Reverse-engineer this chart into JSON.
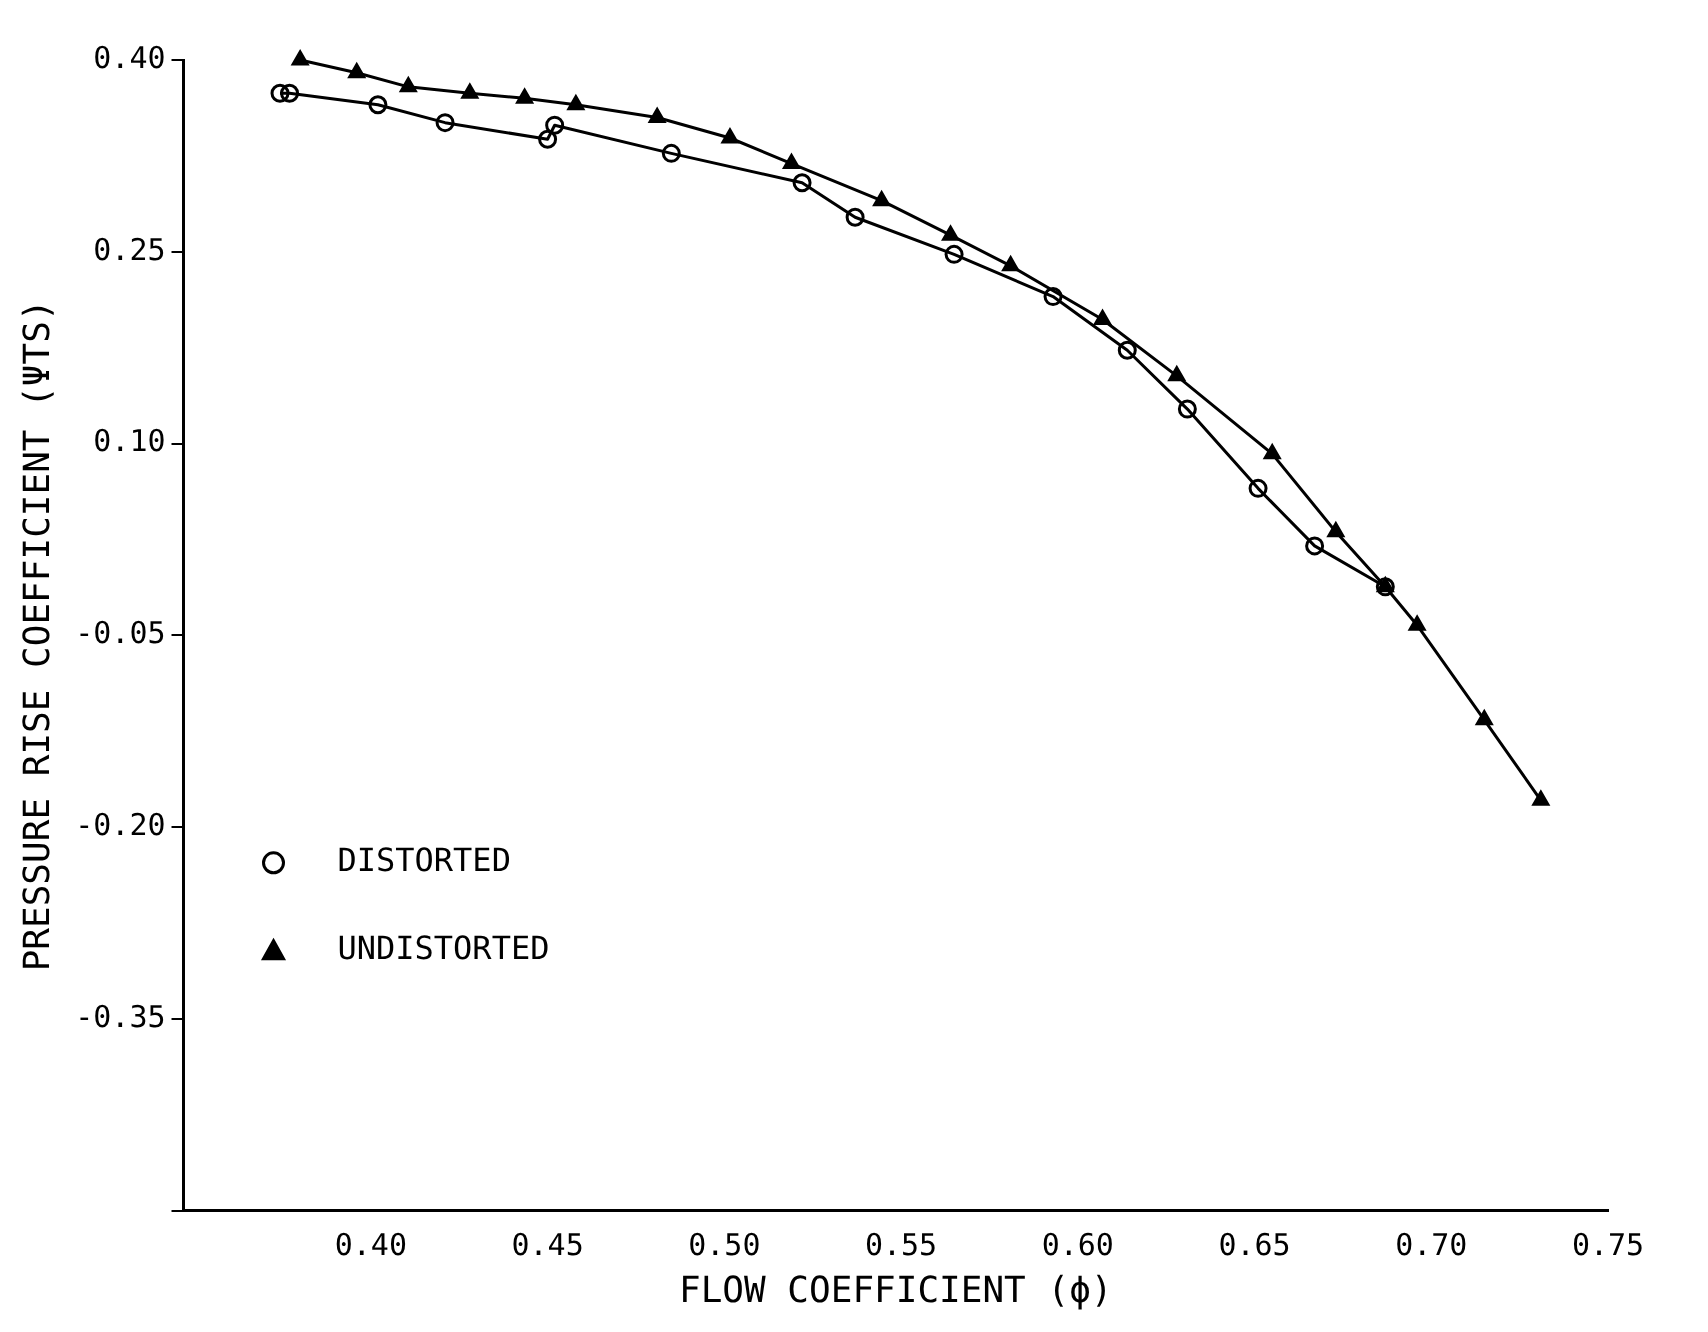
{
  "chart_data": {
    "type": "line",
    "xlabel": "FLOW COEFFICIENT (ϕ)",
    "ylabel": "PRESSURE RISE COEFFICIENT (ΨTS)",
    "xlim": [
      0.347,
      0.75
    ],
    "ylim": [
      -0.5,
      0.4
    ],
    "xticks": [
      {
        "value": 0.4,
        "label": "0.40"
      },
      {
        "value": 0.45,
        "label": "0.45"
      },
      {
        "value": 0.5,
        "label": "0.50"
      },
      {
        "value": 0.55,
        "label": "0.55"
      },
      {
        "value": 0.6,
        "label": "0.60"
      },
      {
        "value": 0.65,
        "label": "0.65"
      },
      {
        "value": 0.7,
        "label": "0.70"
      },
      {
        "value": 0.75,
        "label": "0.75"
      }
    ],
    "yticks": [
      {
        "value": 0.4,
        "label": "0.40"
      },
      {
        "value": 0.25,
        "label": "0.25"
      },
      {
        "value": 0.1,
        "label": "0.10"
      },
      {
        "value": -0.05,
        "label": "-0.05"
      },
      {
        "value": -0.2,
        "label": "-0.20"
      },
      {
        "value": -0.35,
        "label": "-0.35"
      },
      {
        "value": -0.5,
        "label": null
      }
    ],
    "grid": false,
    "legend": "bottom left",
    "line_style": "solid",
    "series": [
      {
        "name": "DISTORTED",
        "color": "#000000",
        "marker": "circle",
        "x": [
          0.3743,
          0.377,
          0.402,
          0.421,
          0.45,
          0.452,
          0.485,
          0.522,
          0.537,
          0.565,
          0.593,
          0.614,
          0.631,
          0.651,
          0.667,
          0.687
        ],
        "values": [
          0.374,
          0.374,
          0.365,
          0.351,
          0.338,
          0.349,
          0.327,
          0.304,
          0.277,
          0.248,
          0.215,
          0.173,
          0.127,
          0.065,
          0.02,
          -0.012
        ]
      },
      {
        "name": "UNDISTORTED",
        "color": "#000000",
        "marker": "triangle",
        "x": [
          0.38,
          0.396,
          0.4106,
          0.428,
          0.4435,
          0.458,
          0.481,
          0.5016,
          0.519,
          0.5445,
          0.564,
          0.581,
          0.607,
          0.628,
          0.655,
          0.673,
          0.687,
          0.696,
          0.715,
          0.731
        ],
        "values": [
          0.4,
          0.39,
          0.379,
          0.374,
          0.37,
          0.365,
          0.355,
          0.339,
          0.319,
          0.29,
          0.263,
          0.239,
          0.197,
          0.153,
          0.092,
          0.031,
          -0.012,
          -0.042,
          -0.116,
          -0.179
        ]
      }
    ]
  }
}
